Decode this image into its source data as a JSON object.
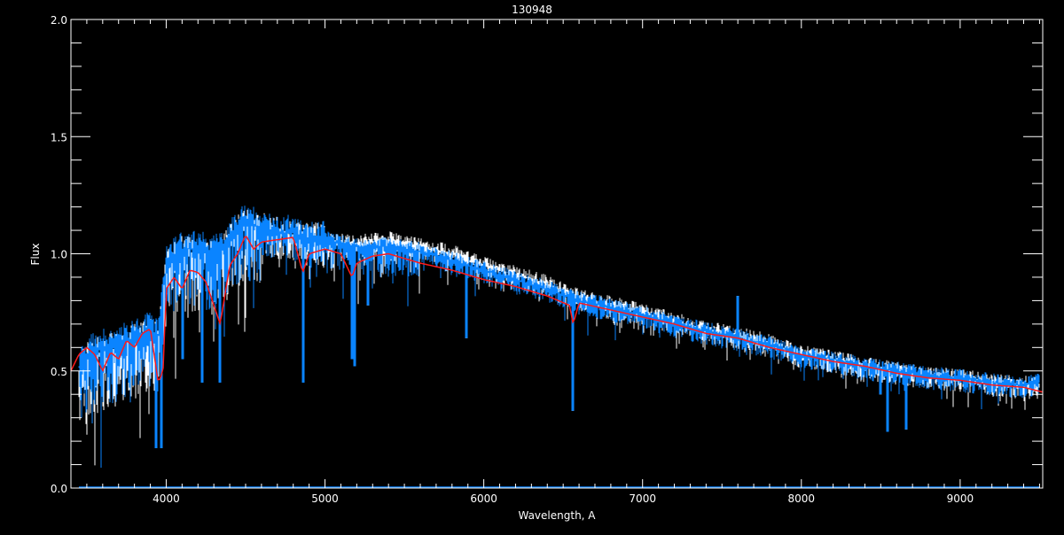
{
  "chart_data": {
    "type": "line",
    "title": "130948",
    "xlabel": "Wavelength, A",
    "ylabel": "Flux",
    "xlim": [
      3400,
      9520
    ],
    "ylim": [
      0,
      2.0
    ],
    "xticks": [
      "4000",
      "5000",
      "6000",
      "7000",
      "8000",
      "9000"
    ],
    "xtick_values": [
      4000,
      5000,
      6000,
      7000,
      8000,
      9000
    ],
    "yticks": [
      "0.0",
      "0.5",
      "1.0",
      "1.5",
      "2.0"
    ],
    "ytick_values": [
      0,
      0.5,
      1.0,
      1.5,
      2.0
    ],
    "x_minor_step": 100,
    "y_minor_step": 0.1,
    "grid": false,
    "background": "#000000",
    "series": [
      {
        "color": "#ffffff",
        "style": "observed spectrum upper envelope",
        "x": [
          3450,
          3500,
          3600,
          3700,
          3800,
          3900,
          3950,
          4000,
          4100,
          4200,
          4300,
          4400,
          4500,
          4600,
          4700,
          4800,
          4900,
          5000,
          5200,
          5400,
          5600,
          5800,
          6000,
          6200,
          6400,
          6600,
          6800,
          7000,
          7200,
          7400,
          7600,
          7800,
          8000,
          8200,
          8400,
          8600,
          8800,
          9000,
          9200,
          9400,
          9500
        ],
        "y": [
          0.5,
          0.55,
          0.58,
          0.6,
          0.62,
          0.66,
          0.62,
          0.95,
          1.0,
          1.0,
          0.98,
          1.05,
          1.12,
          1.1,
          1.08,
          1.08,
          1.05,
          1.06,
          1.04,
          1.06,
          1.03,
          1.0,
          0.95,
          0.91,
          0.87,
          0.81,
          0.78,
          0.75,
          0.71,
          0.68,
          0.65,
          0.62,
          0.57,
          0.55,
          0.52,
          0.5,
          0.48,
          0.47,
          0.45,
          0.44,
          0.44
        ]
      },
      {
        "color": "#0a84ff",
        "style": "observed spectrum",
        "x": [
          3450,
          3500,
          3600,
          3700,
          3800,
          3900,
          3950,
          4000,
          4100,
          4200,
          4300,
          4400,
          4500,
          4600,
          4700,
          4800,
          4900,
          5000,
          5200,
          5400,
          5600,
          5800,
          6000,
          6200,
          6400,
          6600,
          6800,
          7000,
          7200,
          7400,
          7600,
          7800,
          8000,
          8200,
          8400,
          8600,
          8800,
          9000,
          9200,
          9400,
          9500
        ],
        "y": [
          0.52,
          0.57,
          0.6,
          0.62,
          0.64,
          0.68,
          0.64,
          0.97,
          1.02,
          1.02,
          1.0,
          1.07,
          1.14,
          1.11,
          1.09,
          1.09,
          1.06,
          1.06,
          1.03,
          1.03,
          1.01,
          0.97,
          0.93,
          0.89,
          0.85,
          0.8,
          0.77,
          0.74,
          0.7,
          0.67,
          0.64,
          0.61,
          0.57,
          0.55,
          0.52,
          0.5,
          0.48,
          0.47,
          0.45,
          0.44,
          0.45
        ]
      },
      {
        "color": "#ff1a1a",
        "style": "model",
        "x": [
          3400,
          3450,
          3500,
          3550,
          3600,
          3650,
          3700,
          3750,
          3800,
          3850,
          3900,
          3950,
          3980,
          4000,
          4050,
          4100,
          4150,
          4200,
          4250,
          4300,
          4340,
          4400,
          4450,
          4500,
          4550,
          4600,
          4700,
          4800,
          4860,
          4900,
          5000,
          5100,
          5170,
          5200,
          5300,
          5400,
          5500,
          5600,
          5800,
          6000,
          6200,
          6400,
          6540,
          6563,
          6600,
          6800,
          7000,
          7200,
          7400,
          7600,
          7800,
          8000,
          8200,
          8400,
          8600,
          8800,
          9000,
          9200,
          9400,
          9520
        ],
        "y": [
          0.5,
          0.57,
          0.6,
          0.57,
          0.5,
          0.58,
          0.55,
          0.63,
          0.6,
          0.66,
          0.68,
          0.45,
          0.5,
          0.85,
          0.9,
          0.85,
          0.93,
          0.92,
          0.88,
          0.78,
          0.7,
          0.95,
          1.0,
          1.08,
          1.02,
          1.05,
          1.06,
          1.07,
          0.92,
          1.0,
          1.02,
          1.0,
          0.9,
          0.96,
          0.99,
          1.0,
          0.98,
          0.96,
          0.93,
          0.89,
          0.86,
          0.82,
          0.78,
          0.7,
          0.79,
          0.76,
          0.73,
          0.7,
          0.66,
          0.64,
          0.6,
          0.57,
          0.54,
          0.52,
          0.49,
          0.47,
          0.46,
          0.44,
          0.43,
          0.41
        ]
      },
      {
        "color": "#0a84ff",
        "style": "error level",
        "x": [
          3450,
          9500
        ],
        "y": [
          0.0,
          0.0
        ]
      }
    ],
    "strong_lines": {
      "wavelength": [
        3934,
        3968,
        4101,
        4227,
        4340,
        4861,
        5172,
        5184,
        5270,
        5890,
        6563,
        8498,
        8542,
        8662
      ],
      "min_flux": [
        0.17,
        0.17,
        0.55,
        0.45,
        0.45,
        0.45,
        0.55,
        0.52,
        0.78,
        0.64,
        0.33,
        0.4,
        0.24,
        0.25
      ]
    },
    "emission_features": {
      "wavelength": [
        7600
      ],
      "max_flux": [
        0.82
      ]
    }
  }
}
